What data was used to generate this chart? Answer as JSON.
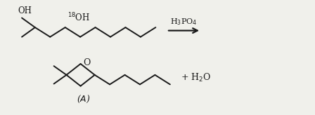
{
  "bg_color": "#f0f0eb",
  "line_color": "#1a1a1a",
  "text_color": "#1a1a1a",
  "arrow_color": "#1a1a1a",
  "catalyst": "H$_3$PO$_4$",
  "label_A": "($A$)",
  "product": "+ H$_2$O",
  "OH1_label": "OH",
  "OH2_label": "$^{18}$OH",
  "O_label": "O",
  "fig_width": 4.48,
  "fig_height": 1.64,
  "dpi": 100
}
